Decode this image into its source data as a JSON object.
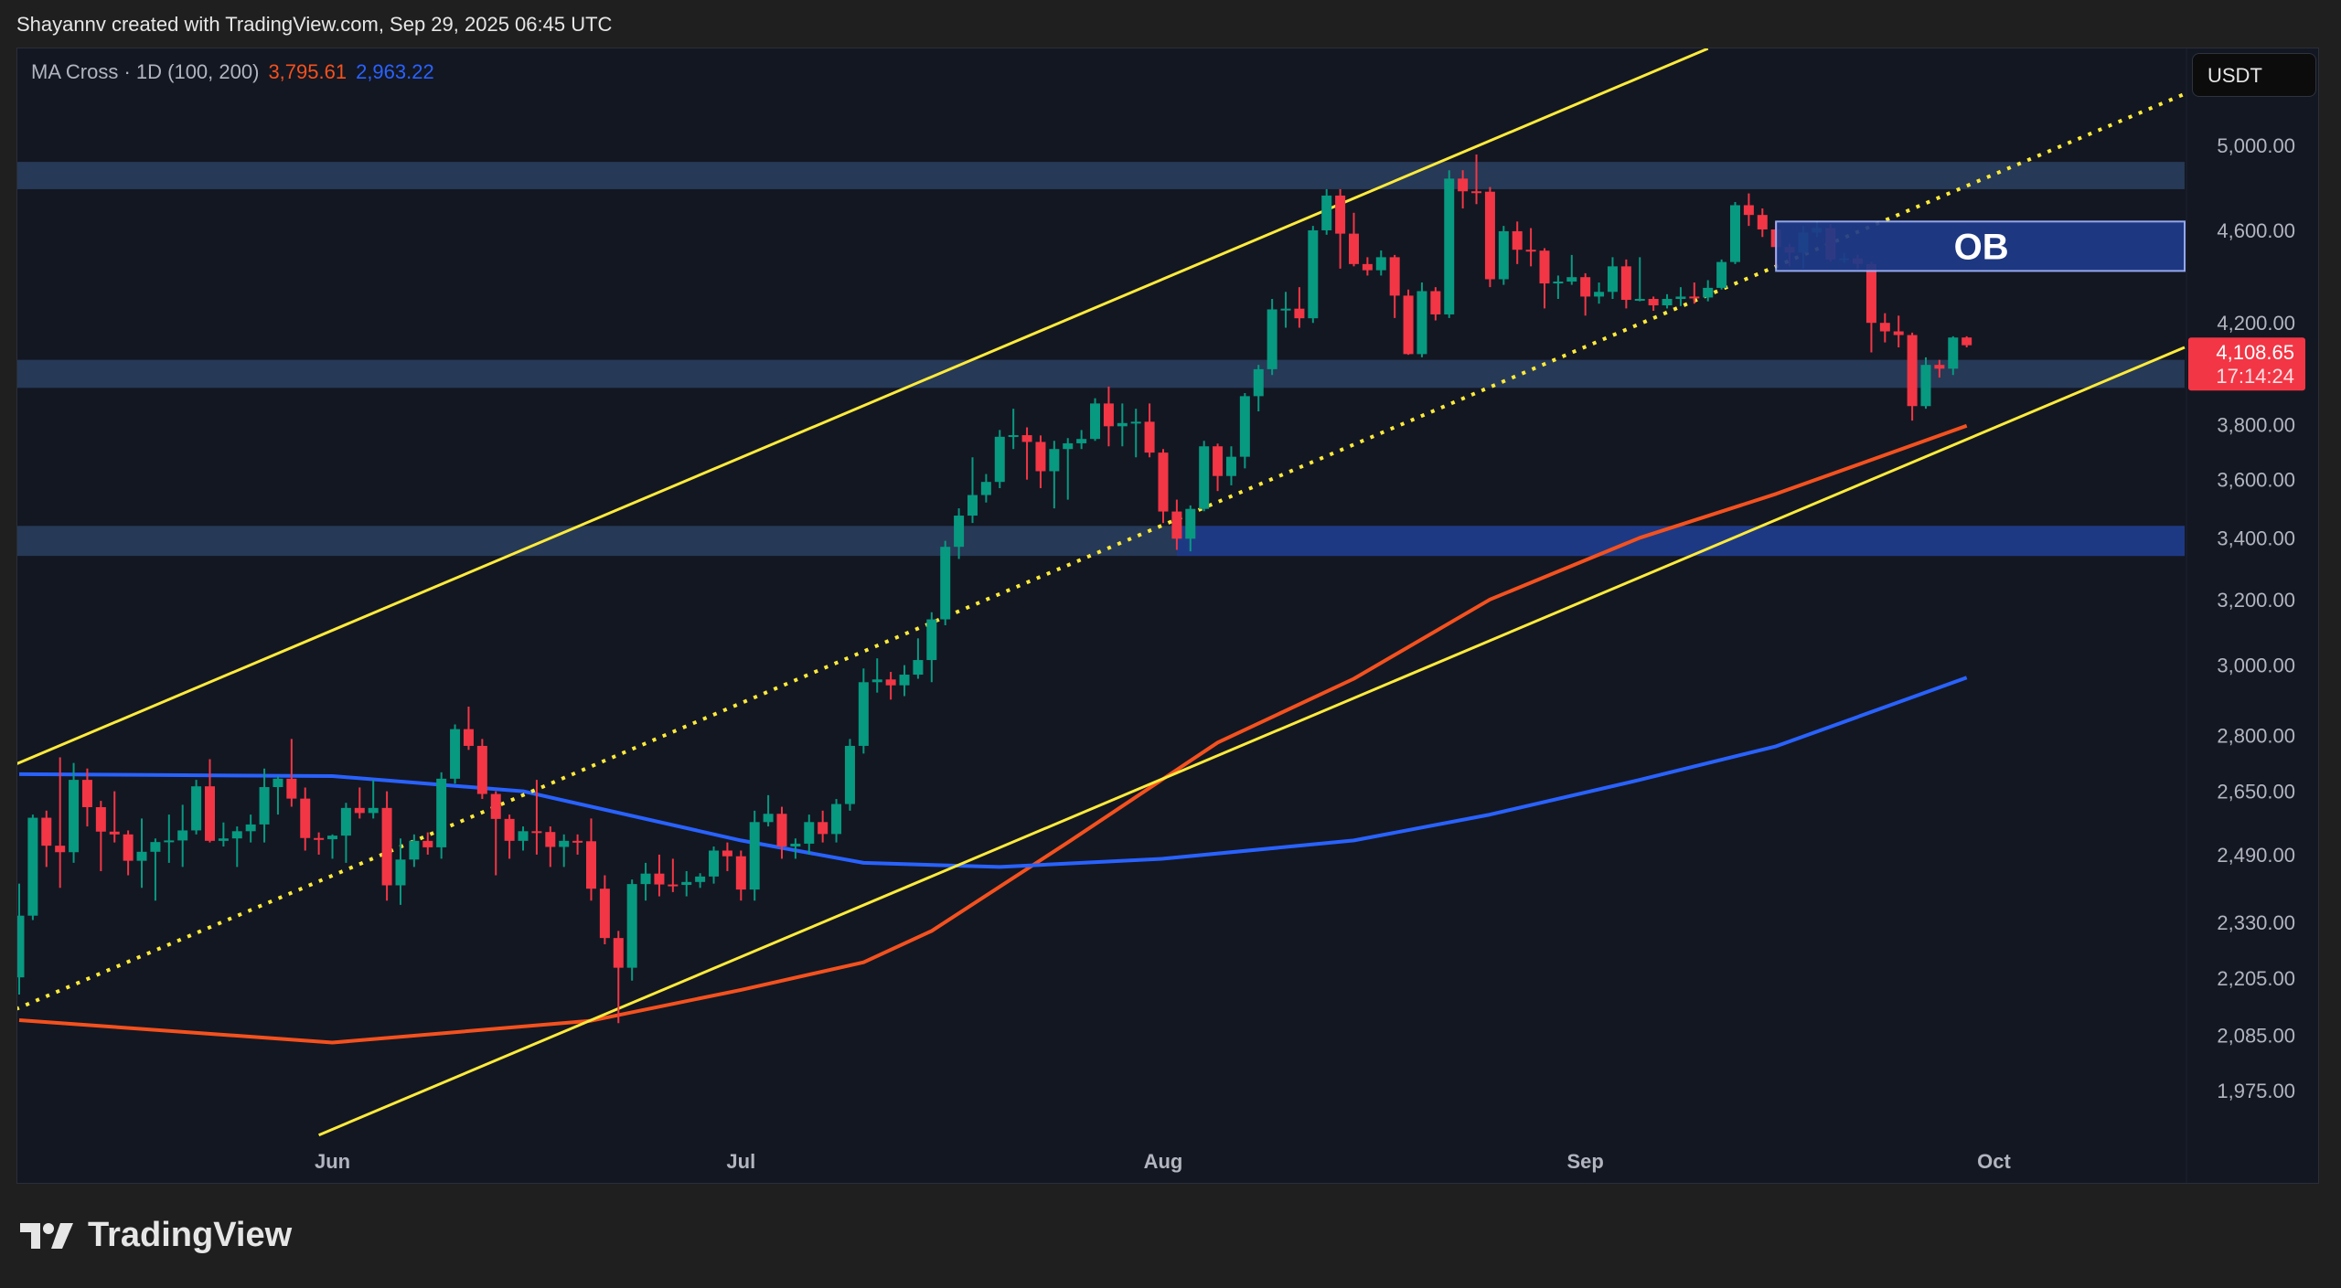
{
  "header": {
    "credit": "Shayannv created with TradingView.com, Sep 29, 2025 06:45 UTC"
  },
  "legend": {
    "indicator": "MA Cross · 1D (100, 200)",
    "ma100_value": "3,795.61",
    "ma200_value": "2,963.22"
  },
  "currency_button": "USDT",
  "brand": {
    "name": "TradingView",
    "icon": "tradingview-logo-icon"
  },
  "colors": {
    "up": "#089981",
    "down": "#f23645",
    "ma100": "#f4511e",
    "ma200": "#2962ff",
    "trendline": "#ffeb3b",
    "zone": "#2a3f5f",
    "zone_strong": "#1e3a8a",
    "ob": "#1e3a8a"
  },
  "current_price": {
    "value": "4,108.65",
    "countdown": "17:14:24"
  },
  "chart_data": {
    "type": "candlestick",
    "title": "",
    "y_scale": "log",
    "ylim": [
      1900,
      5500
    ],
    "xlim": [
      "2025-05-08",
      "2025-10-15"
    ],
    "grid": false,
    "y_ticks": [
      "5,000.00",
      "4,600.00",
      "4,200.00",
      "3,800.00",
      "3,600.00",
      "3,400.00",
      "3,200.00",
      "3,000.00",
      "2,800.00",
      "2,650.00",
      "2,490.00",
      "2,330.00",
      "2,205.00",
      "2,085.00",
      "1,975.00"
    ],
    "x_ticks": [
      {
        "label": "Jun",
        "date": "2025-06-01"
      },
      {
        "label": "Jul",
        "date": "2025-07-01"
      },
      {
        "label": "Aug",
        "date": "2025-08-01"
      },
      {
        "label": "Sep",
        "date": "2025-09-01"
      },
      {
        "label": "Oct",
        "date": "2025-10-01"
      }
    ],
    "candles_columns": [
      "date",
      "open",
      "high",
      "low",
      "close"
    ],
    "candles": [
      [
        "2025-05-09",
        2207,
        2420,
        2170,
        2345
      ],
      [
        "2025-05-10",
        2345,
        2590,
        2335,
        2582
      ],
      [
        "2025-05-11",
        2582,
        2600,
        2460,
        2512
      ],
      [
        "2025-05-12",
        2512,
        2740,
        2410,
        2496
      ],
      [
        "2025-05-13",
        2496,
        2725,
        2470,
        2680
      ],
      [
        "2025-05-14",
        2680,
        2710,
        2560,
        2609
      ],
      [
        "2025-05-15",
        2609,
        2625,
        2450,
        2547
      ],
      [
        "2025-05-16",
        2547,
        2650,
        2520,
        2540
      ],
      [
        "2025-05-17",
        2540,
        2550,
        2440,
        2475
      ],
      [
        "2025-05-18",
        2475,
        2580,
        2410,
        2497
      ],
      [
        "2025-05-19",
        2497,
        2530,
        2380,
        2521
      ],
      [
        "2025-05-20",
        2521,
        2590,
        2470,
        2525
      ],
      [
        "2025-05-21",
        2525,
        2615,
        2460,
        2550
      ],
      [
        "2025-05-22",
        2550,
        2680,
        2540,
        2663
      ],
      [
        "2025-05-23",
        2663,
        2735,
        2520,
        2524
      ],
      [
        "2025-05-24",
        2524,
        2570,
        2510,
        2530
      ],
      [
        "2025-05-25",
        2530,
        2560,
        2460,
        2548
      ],
      [
        "2025-05-26",
        2548,
        2590,
        2520,
        2565
      ],
      [
        "2025-05-27",
        2565,
        2710,
        2520,
        2661
      ],
      [
        "2025-05-28",
        2661,
        2690,
        2590,
        2683
      ],
      [
        "2025-05-29",
        2683,
        2790,
        2610,
        2631
      ],
      [
        "2025-05-30",
        2631,
        2660,
        2500,
        2531
      ],
      [
        "2025-05-31",
        2531,
        2545,
        2490,
        2528
      ],
      [
        "2025-06-01",
        2528,
        2540,
        2480,
        2537
      ],
      [
        "2025-06-02",
        2537,
        2620,
        2470,
        2607
      ],
      [
        "2025-06-03",
        2607,
        2660,
        2580,
        2594
      ],
      [
        "2025-06-04",
        2594,
        2680,
        2580,
        2607
      ],
      [
        "2025-06-05",
        2607,
        2650,
        2380,
        2416
      ],
      [
        "2025-06-06",
        2416,
        2530,
        2370,
        2478
      ],
      [
        "2025-06-07",
        2478,
        2540,
        2460,
        2524
      ],
      [
        "2025-06-08",
        2524,
        2545,
        2490,
        2508
      ],
      [
        "2025-06-09",
        2508,
        2700,
        2480,
        2683
      ],
      [
        "2025-06-10",
        2683,
        2830,
        2670,
        2817
      ],
      [
        "2025-06-11",
        2817,
        2880,
        2760,
        2771
      ],
      [
        "2025-06-12",
        2771,
        2790,
        2630,
        2643
      ],
      [
        "2025-06-13",
        2643,
        2650,
        2440,
        2579
      ],
      [
        "2025-06-14",
        2579,
        2590,
        2480,
        2524
      ],
      [
        "2025-06-15",
        2524,
        2560,
        2500,
        2548
      ],
      [
        "2025-06-16",
        2548,
        2680,
        2490,
        2546
      ],
      [
        "2025-06-17",
        2546,
        2560,
        2460,
        2509
      ],
      [
        "2025-06-18",
        2509,
        2540,
        2460,
        2524
      ],
      [
        "2025-06-19",
        2524,
        2540,
        2490,
        2523
      ],
      [
        "2025-06-20",
        2523,
        2580,
        2380,
        2408
      ],
      [
        "2025-06-21",
        2408,
        2440,
        2280,
        2294
      ],
      [
        "2025-06-22",
        2294,
        2310,
        2110,
        2228
      ],
      [
        "2025-06-23",
        2228,
        2430,
        2200,
        2419
      ],
      [
        "2025-06-24",
        2419,
        2470,
        2380,
        2444
      ],
      [
        "2025-06-25",
        2444,
        2490,
        2390,
        2418
      ],
      [
        "2025-06-26",
        2418,
        2480,
        2400,
        2417
      ],
      [
        "2025-06-27",
        2417,
        2450,
        2390,
        2424
      ],
      [
        "2025-06-28",
        2424,
        2445,
        2410,
        2437
      ],
      [
        "2025-06-29",
        2437,
        2510,
        2420,
        2500
      ],
      [
        "2025-06-30",
        2500,
        2520,
        2450,
        2486
      ],
      [
        "2025-07-01",
        2486,
        2500,
        2380,
        2406
      ],
      [
        "2025-07-02",
        2406,
        2600,
        2380,
        2571
      ],
      [
        "2025-07-03",
        2571,
        2640,
        2560,
        2592
      ],
      [
        "2025-07-04",
        2592,
        2610,
        2480,
        2510
      ],
      [
        "2025-07-05",
        2510,
        2530,
        2480,
        2517
      ],
      [
        "2025-07-06",
        2517,
        2590,
        2490,
        2571
      ],
      [
        "2025-07-07",
        2571,
        2600,
        2520,
        2541
      ],
      [
        "2025-07-08",
        2541,
        2630,
        2520,
        2617
      ],
      [
        "2025-07-09",
        2617,
        2790,
        2600,
        2771
      ],
      [
        "2025-07-10",
        2771,
        2990,
        2750,
        2950
      ],
      [
        "2025-07-11",
        2950,
        3020,
        2920,
        2958
      ],
      [
        "2025-07-12",
        2958,
        2980,
        2900,
        2941
      ],
      [
        "2025-07-13",
        2941,
        3000,
        2910,
        2972
      ],
      [
        "2025-07-14",
        2972,
        3080,
        2960,
        3015
      ],
      [
        "2025-07-15",
        3015,
        3160,
        2950,
        3138
      ],
      [
        "2025-07-16",
        3138,
        3390,
        3120,
        3370
      ],
      [
        "2025-07-17",
        3370,
        3500,
        3330,
        3475
      ],
      [
        "2025-07-18",
        3475,
        3680,
        3450,
        3546
      ],
      [
        "2025-07-19",
        3546,
        3620,
        3520,
        3592
      ],
      [
        "2025-07-20",
        3592,
        3780,
        3570,
        3755
      ],
      [
        "2025-07-21",
        3755,
        3860,
        3710,
        3761
      ],
      [
        "2025-07-22",
        3761,
        3790,
        3600,
        3736
      ],
      [
        "2025-07-23",
        3736,
        3760,
        3570,
        3630
      ],
      [
        "2025-07-24",
        3630,
        3740,
        3500,
        3710
      ],
      [
        "2025-07-25",
        3710,
        3750,
        3530,
        3731
      ],
      [
        "2025-07-26",
        3731,
        3780,
        3710,
        3747
      ],
      [
        "2025-07-27",
        3747,
        3900,
        3740,
        3880
      ],
      [
        "2025-07-28",
        3880,
        3945,
        3720,
        3794
      ],
      [
        "2025-07-29",
        3794,
        3880,
        3720,
        3806
      ],
      [
        "2025-07-30",
        3806,
        3860,
        3680,
        3811
      ],
      [
        "2025-07-31",
        3811,
        3880,
        3680,
        3697
      ],
      [
        "2025-08-01",
        3697,
        3710,
        3450,
        3489
      ],
      [
        "2025-08-02",
        3489,
        3530,
        3360,
        3397
      ],
      [
        "2025-08-03",
        3397,
        3510,
        3355,
        3498
      ],
      [
        "2025-08-04",
        3498,
        3740,
        3490,
        3720
      ],
      [
        "2025-08-05",
        3720,
        3730,
        3560,
        3613
      ],
      [
        "2025-08-06",
        3613,
        3720,
        3580,
        3682
      ],
      [
        "2025-08-07",
        3682,
        3920,
        3640,
        3908
      ],
      [
        "2025-08-08",
        3908,
        4030,
        3850,
        4013
      ],
      [
        "2025-08-09",
        4013,
        4300,
        3990,
        4256
      ],
      [
        "2025-08-10",
        4256,
        4330,
        4180,
        4259
      ],
      [
        "2025-08-11",
        4259,
        4350,
        4180,
        4219
      ],
      [
        "2025-08-12",
        4219,
        4620,
        4200,
        4600
      ],
      [
        "2025-08-13",
        4600,
        4790,
        4580,
        4760
      ],
      [
        "2025-08-14",
        4760,
        4790,
        4430,
        4585
      ],
      [
        "2025-08-15",
        4585,
        4680,
        4440,
        4450
      ],
      [
        "2025-08-16",
        4450,
        4480,
        4400,
        4423
      ],
      [
        "2025-08-17",
        4423,
        4510,
        4400,
        4480
      ],
      [
        "2025-08-18",
        4480,
        4490,
        4220,
        4314
      ],
      [
        "2025-08-19",
        4314,
        4340,
        4070,
        4073
      ],
      [
        "2025-08-20",
        4073,
        4370,
        4060,
        4333
      ],
      [
        "2025-08-21",
        4333,
        4350,
        4210,
        4235
      ],
      [
        "2025-08-22",
        4235,
        4880,
        4220,
        4840
      ],
      [
        "2025-08-23",
        4840,
        4880,
        4700,
        4780
      ],
      [
        "2025-08-24",
        4780,
        4956,
        4720,
        4778
      ],
      [
        "2025-08-25",
        4778,
        4800,
        4350,
        4384
      ],
      [
        "2025-08-26",
        4384,
        4620,
        4360,
        4596
      ],
      [
        "2025-08-27",
        4596,
        4640,
        4450,
        4513
      ],
      [
        "2025-08-28",
        4513,
        4610,
        4440,
        4509
      ],
      [
        "2025-08-29",
        4509,
        4520,
        4260,
        4366
      ],
      [
        "2025-08-30",
        4366,
        4400,
        4300,
        4374
      ],
      [
        "2025-08-31",
        4374,
        4490,
        4360,
        4393
      ],
      [
        "2025-09-01",
        4393,
        4410,
        4230,
        4310
      ],
      [
        "2025-09-02",
        4310,
        4370,
        4280,
        4330
      ],
      [
        "2025-09-03",
        4330,
        4480,
        4300,
        4440
      ],
      [
        "2025-09-04",
        4440,
        4470,
        4260,
        4296
      ],
      [
        "2025-09-05",
        4296,
        4480,
        4290,
        4300
      ],
      [
        "2025-09-06",
        4300,
        4310,
        4250,
        4273
      ],
      [
        "2025-09-07",
        4273,
        4320,
        4260,
        4300
      ],
      [
        "2025-09-08",
        4300,
        4350,
        4270,
        4310
      ],
      [
        "2025-09-09",
        4310,
        4370,
        4280,
        4306
      ],
      [
        "2025-09-10",
        4306,
        4380,
        4290,
        4347
      ],
      [
        "2025-09-11",
        4347,
        4470,
        4340,
        4459
      ],
      [
        "2025-09-12",
        4459,
        4730,
        4450,
        4715
      ],
      [
        "2025-09-13",
        4715,
        4770,
        4620,
        4670
      ],
      [
        "2025-09-14",
        4670,
        4700,
        4570,
        4604
      ],
      [
        "2025-09-15",
        4604,
        4640,
        4440,
        4525
      ],
      [
        "2025-09-16",
        4525,
        4540,
        4440,
        4500
      ],
      [
        "2025-09-17",
        4500,
        4620,
        4430,
        4590
      ],
      [
        "2025-09-18",
        4590,
        4640,
        4570,
        4610
      ],
      [
        "2025-09-19",
        4610,
        4630,
        4460,
        4470
      ],
      [
        "2025-09-20",
        4470,
        4500,
        4455,
        4475
      ],
      [
        "2025-09-21",
        4475,
        4490,
        4430,
        4450
      ],
      [
        "2025-09-22",
        4450,
        4460,
        4080,
        4200
      ],
      [
        "2025-09-23",
        4200,
        4240,
        4120,
        4165
      ],
      [
        "2025-09-24",
        4165,
        4230,
        4100,
        4150
      ],
      [
        "2025-09-25",
        4150,
        4160,
        3815,
        3870
      ],
      [
        "2025-09-26",
        3870,
        4060,
        3860,
        4030
      ],
      [
        "2025-09-27",
        4030,
        4050,
        3980,
        4015
      ],
      [
        "2025-09-28",
        4015,
        4145,
        3990,
        4140
      ],
      [
        "2025-09-29",
        4140,
        4145,
        4100,
        4108.65
      ]
    ],
    "series": [
      {
        "name": "MA 100",
        "color": "#f4511e",
        "points": [
          [
            "2025-05-09",
            2116
          ],
          [
            "2025-06-01",
            2070
          ],
          [
            "2025-06-20",
            2115
          ],
          [
            "2025-07-01",
            2180
          ],
          [
            "2025-07-10",
            2240
          ],
          [
            "2025-07-15",
            2310
          ],
          [
            "2025-07-25",
            2520
          ],
          [
            "2025-08-05",
            2780
          ],
          [
            "2025-08-15",
            2960
          ],
          [
            "2025-08-25",
            3200
          ],
          [
            "2025-09-05",
            3400
          ],
          [
            "2025-09-15",
            3550
          ],
          [
            "2025-09-29",
            3795.61
          ]
        ]
      },
      {
        "name": "MA 200",
        "color": "#2962ff",
        "points": [
          [
            "2025-05-09",
            2695
          ],
          [
            "2025-06-01",
            2690
          ],
          [
            "2025-06-15",
            2650
          ],
          [
            "2025-07-01",
            2525
          ],
          [
            "2025-07-10",
            2470
          ],
          [
            "2025-07-20",
            2460
          ],
          [
            "2025-08-01",
            2480
          ],
          [
            "2025-08-15",
            2525
          ],
          [
            "2025-08-25",
            2590
          ],
          [
            "2025-09-05",
            2680
          ],
          [
            "2025-09-15",
            2770
          ],
          [
            "2025-09-29",
            2963.22
          ]
        ]
      }
    ],
    "drawings": {
      "trendlines": [
        {
          "style": "solid",
          "from": [
            "2025-05-08",
            2710
          ],
          "to": [
            "2025-09-10",
            5500
          ]
        },
        {
          "style": "solid",
          "from": [
            "2025-05-31",
            1890
          ],
          "to": [
            "2025-10-15",
            4100
          ]
        },
        {
          "style": "dotted",
          "from": [
            "2025-05-08",
            2130
          ],
          "to": [
            "2025-10-15",
            5260
          ]
        }
      ],
      "zones": [
        {
          "from": "2025-05-08",
          "to": "2025-10-15",
          "top": 4920,
          "bottom": 4790,
          "style": "zone"
        },
        {
          "from": "2025-05-08",
          "to": "2025-10-15",
          "top": 4050,
          "bottom": 3940,
          "style": "zone"
        },
        {
          "from": "2025-05-08",
          "to": "2025-10-15",
          "top": 3440,
          "bottom": 3340,
          "style": "zone"
        },
        {
          "from": "2025-08-02",
          "to": "2025-10-15",
          "top": 3440,
          "bottom": 3340,
          "style": "zone_strong"
        }
      ],
      "order_block": {
        "label": "OB",
        "from": "2025-09-15",
        "to": "2025-10-15",
        "top": 4640,
        "bottom": 4420
      }
    }
  }
}
